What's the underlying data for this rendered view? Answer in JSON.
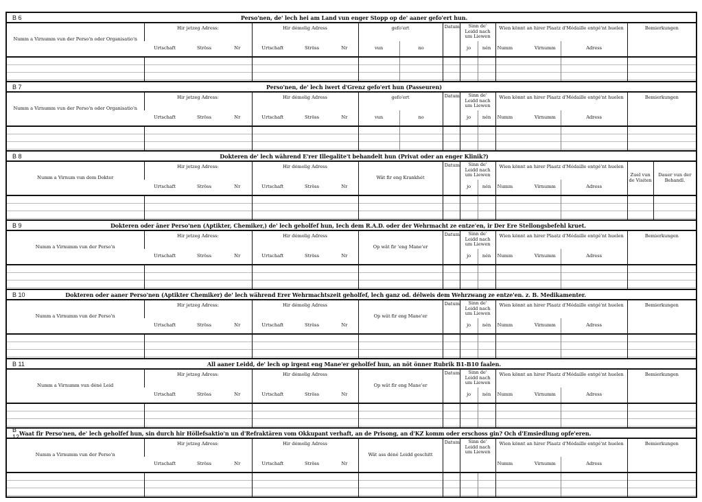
{
  "common": {
    "cur_addr": "Hir jetzeg Adress:",
    "former_addr": "Hir démolig Adress",
    "urtschaft": "Urtschaft",
    "stross": "Ströss",
    "nr": "Nr",
    "datum": "Datum",
    "sinn": "Sinn de' Leidd nach um Liewen",
    "jo": "jo",
    "nen": "nén",
    "wien": "Wien könnt an hirer Plaatz d'Médaille entgé'nt huelen",
    "numm": "Numm",
    "virnumm": "Virnumm",
    "adress": "Adress",
    "bemierkungen": "Bemierkungen",
    "zuel": "Zuel vun de Visiten",
    "dauer": "Dauer vun der Behandl."
  },
  "sections": [
    {
      "code": "B 6",
      "title": "Perso'nen, de' lech hei am Land vun enger Stopp  op de' aaner gefo'ert hun.",
      "name_col": "Numm a Virnumm vun der Perso'n oder Organisatio'n",
      "mid": "gefo'ert",
      "mid_sub": [
        "vun",
        "no"
      ],
      "sinn_sub": true,
      "bem": "single"
    },
    {
      "code": "B 7",
      "title": "Perso'nen, de' lech iwert d'Grenz gefo'ert hun (Passeuren)",
      "name_col": "Numm a Virnumm vun der Perso'n oder Organisatio'n",
      "mid": "gefo'ert",
      "mid_sub": [
        "vun",
        "no"
      ],
      "sinn_sub": true,
      "bem": "single"
    },
    {
      "code": "B 8",
      "title": "Dokteren de' lech während E'rer Illegalite't behandelt hun (Privat oder an enger Klinik?)",
      "name_col": "Numm a Virnum vun dem Dokter",
      "mid": "Wât fir eng Krankhét",
      "mid_sub": null,
      "sinn_sub": true,
      "bem": "split"
    },
    {
      "code": "B 9",
      "title": "Dokteren oder âner Perso'nen (Aptikter, Chemiker,) de' lech geholfef hun, Iech dem R.A.D. oder der Wehrmacht ze entze'en, ir Der Ere Stellongsbefehl kruet.",
      "name_col": "Numm a Virnumm vun der Perso'n",
      "mid": "Op wât fir 'eng Mane'er",
      "mid_sub": null,
      "sinn_sub": true,
      "bem": "single"
    },
    {
      "code": "B 10",
      "title": "Dokteren oder aaner Perso'nen (Aptikter Chemiker) de' lech während Erer Wehrmachtszeit geholfef, lech ganz od. délweis dem Wehrzwang ze entze'en. z. B. Medikamenter.",
      "name_col": "Numm a Virnumm vun der Perso'n",
      "mid": "Op wât fir eng Mane'er",
      "mid_sub": null,
      "sinn_sub": true,
      "bem": "single"
    },
    {
      "code": "B 11",
      "title": "All aaner Leidd, de' lech op irgent eng Mane'er geholfef hun, an nöt önner Rubrik B1-B10 faalen.",
      "name_col": "Numm a Virnumm vun déné Leid",
      "mid": "Op wât fir eng Mane'er",
      "mid_sub": null,
      "sinn_sub": true,
      "bem": "single"
    },
    {
      "code": "B 12",
      "title": "Waat fir Perso'nen, de' lech geholfef hun, sin durch hir Höllefsaktio'n un d'Refraktären vom Okkupant verhaft, an de Prisong, an d'KZ komm oder  erschoss gin? Och d'Emsiedlung opfe'eren.",
      "name_col": "Numm a Virnumm vun der Perso'n",
      "mid": "Wât ass déné Leidd geschitt",
      "mid_sub": null,
      "sinn_sub": false,
      "bem": "single"
    }
  ]
}
